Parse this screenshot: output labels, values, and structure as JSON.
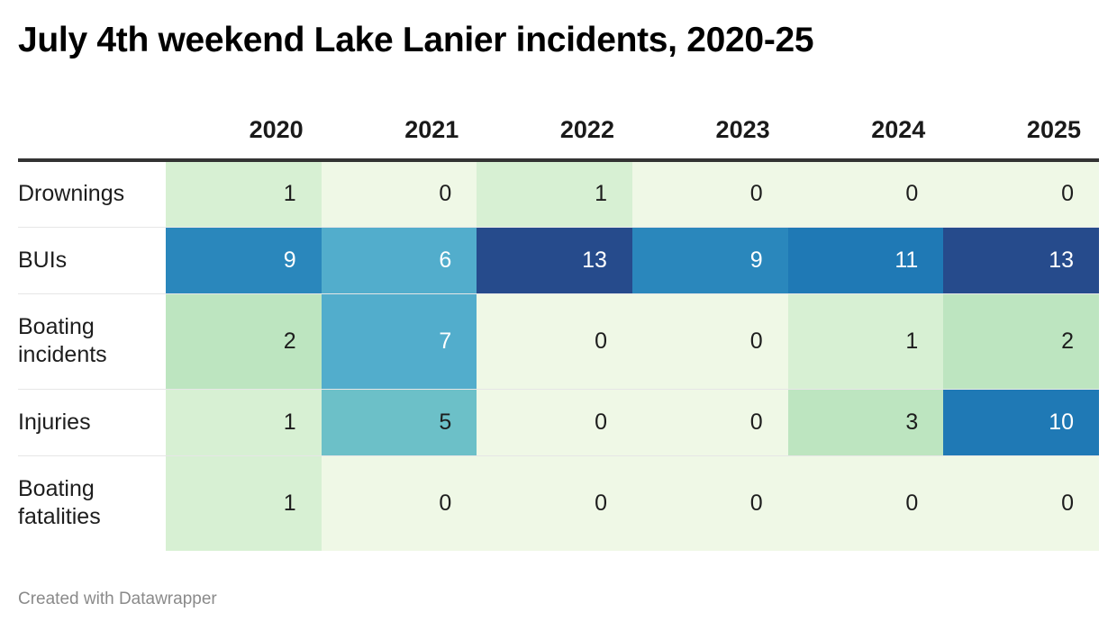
{
  "title": "July 4th weekend Lake Lanier incidents, 2020-25",
  "footer": "Created with Datawrapper",
  "colors": {
    "scale": [
      "#eff8e6",
      "#d7f0d3",
      "#bde5c0",
      "#9dd8c4",
      "#6cc0c8",
      "#52adcc",
      "#42a0c9",
      "#2a87bc",
      "#1f79b5",
      "#1066a8",
      "#264b8c"
    ],
    "text_light": "#1d1d1d",
    "text_dark": "#ffffff"
  },
  "chart_data": {
    "type": "heatmap",
    "title": "July 4th weekend Lake Lanier incidents, 2020-25",
    "columns": [
      "2020",
      "2021",
      "2022",
      "2023",
      "2024",
      "2025"
    ],
    "rows": [
      {
        "label": "Drownings",
        "values": [
          1,
          0,
          1,
          0,
          0,
          0
        ]
      },
      {
        "label": "BUIs",
        "values": [
          9,
          6,
          13,
          9,
          11,
          13
        ]
      },
      {
        "label": "Boating incidents",
        "values": [
          2,
          7,
          0,
          0,
          1,
          2
        ]
      },
      {
        "label": "Injuries",
        "values": [
          1,
          5,
          0,
          0,
          3,
          10
        ]
      },
      {
        "label": "Boating fatalities",
        "values": [
          1,
          0,
          0,
          0,
          0,
          0
        ]
      }
    ],
    "value_range": [
      0,
      13
    ]
  }
}
